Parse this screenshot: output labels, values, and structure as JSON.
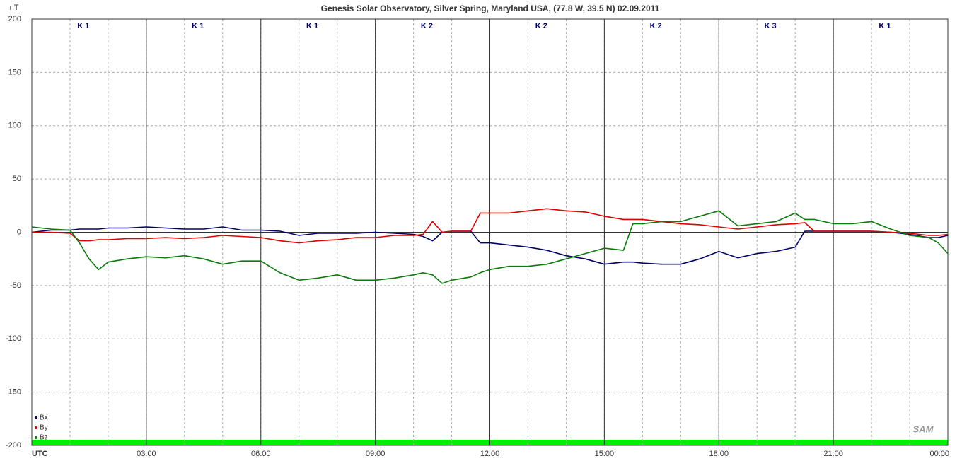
{
  "chart_data": {
    "type": "line",
    "title": "Genesis Solar Observatory, Silver Spring, Maryland USA, (77.8 W, 39.5 N)  02.09.2011",
    "y_label": "nT",
    "logo": "SAM",
    "grid": true,
    "legend": "bottom-left",
    "xlim": [
      0,
      24
    ],
    "ylim": [
      -200,
      200
    ],
    "yticks": [
      -200,
      -150,
      -100,
      -50,
      0,
      50,
      100,
      150,
      200
    ],
    "xticks": [
      {
        "value": 0,
        "label": "UTC"
      },
      {
        "value": 3,
        "label": "03:00"
      },
      {
        "value": 6,
        "label": "06:00"
      },
      {
        "value": 9,
        "label": "09:00"
      },
      {
        "value": 12,
        "label": "12:00"
      },
      {
        "value": 15,
        "label": "15:00"
      },
      {
        "value": 18,
        "label": "18:00"
      },
      {
        "value": 21,
        "label": "21:00"
      },
      {
        "value": 24,
        "label": "00:00"
      }
    ],
    "k_index": {
      "values": [
        1,
        1,
        1,
        2,
        2,
        2,
        3,
        1
      ],
      "value_labels": [
        "K 1",
        "K 1",
        "K 1",
        "K 2",
        "K 2",
        "K 2",
        "K 3",
        "K 1"
      ]
    },
    "x": [
      0,
      0.5,
      1,
      1.25,
      1.5,
      1.75,
      2,
      2.5,
      3,
      3.5,
      4,
      4.5,
      5,
      5.5,
      6,
      6.5,
      7,
      7.5,
      8,
      8.5,
      9,
      9.5,
      10,
      10.25,
      10.5,
      10.75,
      11,
      11.5,
      11.75,
      12,
      12.5,
      13,
      13.5,
      14,
      14.5,
      15,
      15.5,
      15.75,
      16,
      16.5,
      17,
      17.5,
      18,
      18.5,
      19,
      19.5,
      20,
      20.25,
      20.5,
      21,
      21.5,
      22,
      22.5,
      23,
      23.5,
      23.75,
      24
    ],
    "series": [
      {
        "name": "Bx",
        "color": "#000066",
        "values": [
          0,
          2,
          2,
          3,
          3,
          3,
          4,
          4,
          5,
          4,
          3,
          3,
          5,
          2,
          2,
          1,
          -3,
          -1,
          -1,
          -1,
          0,
          -1,
          -2,
          -4,
          -8,
          0,
          1,
          1,
          -10,
          -10,
          -12,
          -14,
          -17,
          -22,
          -25,
          -30,
          -28,
          -28,
          -29,
          -30,
          -30,
          -25,
          -18,
          -24,
          -20,
          -18,
          -14,
          1,
          1,
          1,
          1,
          1,
          0,
          -2,
          -5,
          -5,
          -3
        ]
      },
      {
        "name": "By",
        "color": "#dd0000",
        "values": [
          0,
          0,
          -1,
          -8,
          -8,
          -7,
          -7,
          -6,
          -6,
          -5,
          -6,
          -5,
          -3,
          -4,
          -5,
          -8,
          -10,
          -8,
          -7,
          -5,
          -5,
          -3,
          -3,
          -2,
          10,
          0,
          1,
          1,
          18,
          18,
          18,
          20,
          22,
          20,
          19,
          15,
          12,
          12,
          12,
          10,
          8,
          7,
          5,
          3,
          5,
          7,
          8,
          9,
          1,
          1,
          1,
          1,
          0,
          -1,
          -3,
          -3,
          -2
        ]
      },
      {
        "name": "Bz",
        "color": "#0a7a0a",
        "values": [
          5,
          3,
          2,
          -10,
          -25,
          -35,
          -28,
          -25,
          -23,
          -24,
          -22,
          -25,
          -30,
          -27,
          -27,
          -38,
          -45,
          -43,
          -40,
          -45,
          -45,
          -43,
          -40,
          -38,
          -40,
          -48,
          -45,
          -42,
          -38,
          -35,
          -32,
          -32,
          -30,
          -25,
          -20,
          -15,
          -17,
          8,
          8,
          10,
          10,
          15,
          20,
          6,
          8,
          10,
          18,
          12,
          12,
          8,
          8,
          10,
          3,
          -3,
          -5,
          -10,
          -20
        ]
      }
    ]
  }
}
